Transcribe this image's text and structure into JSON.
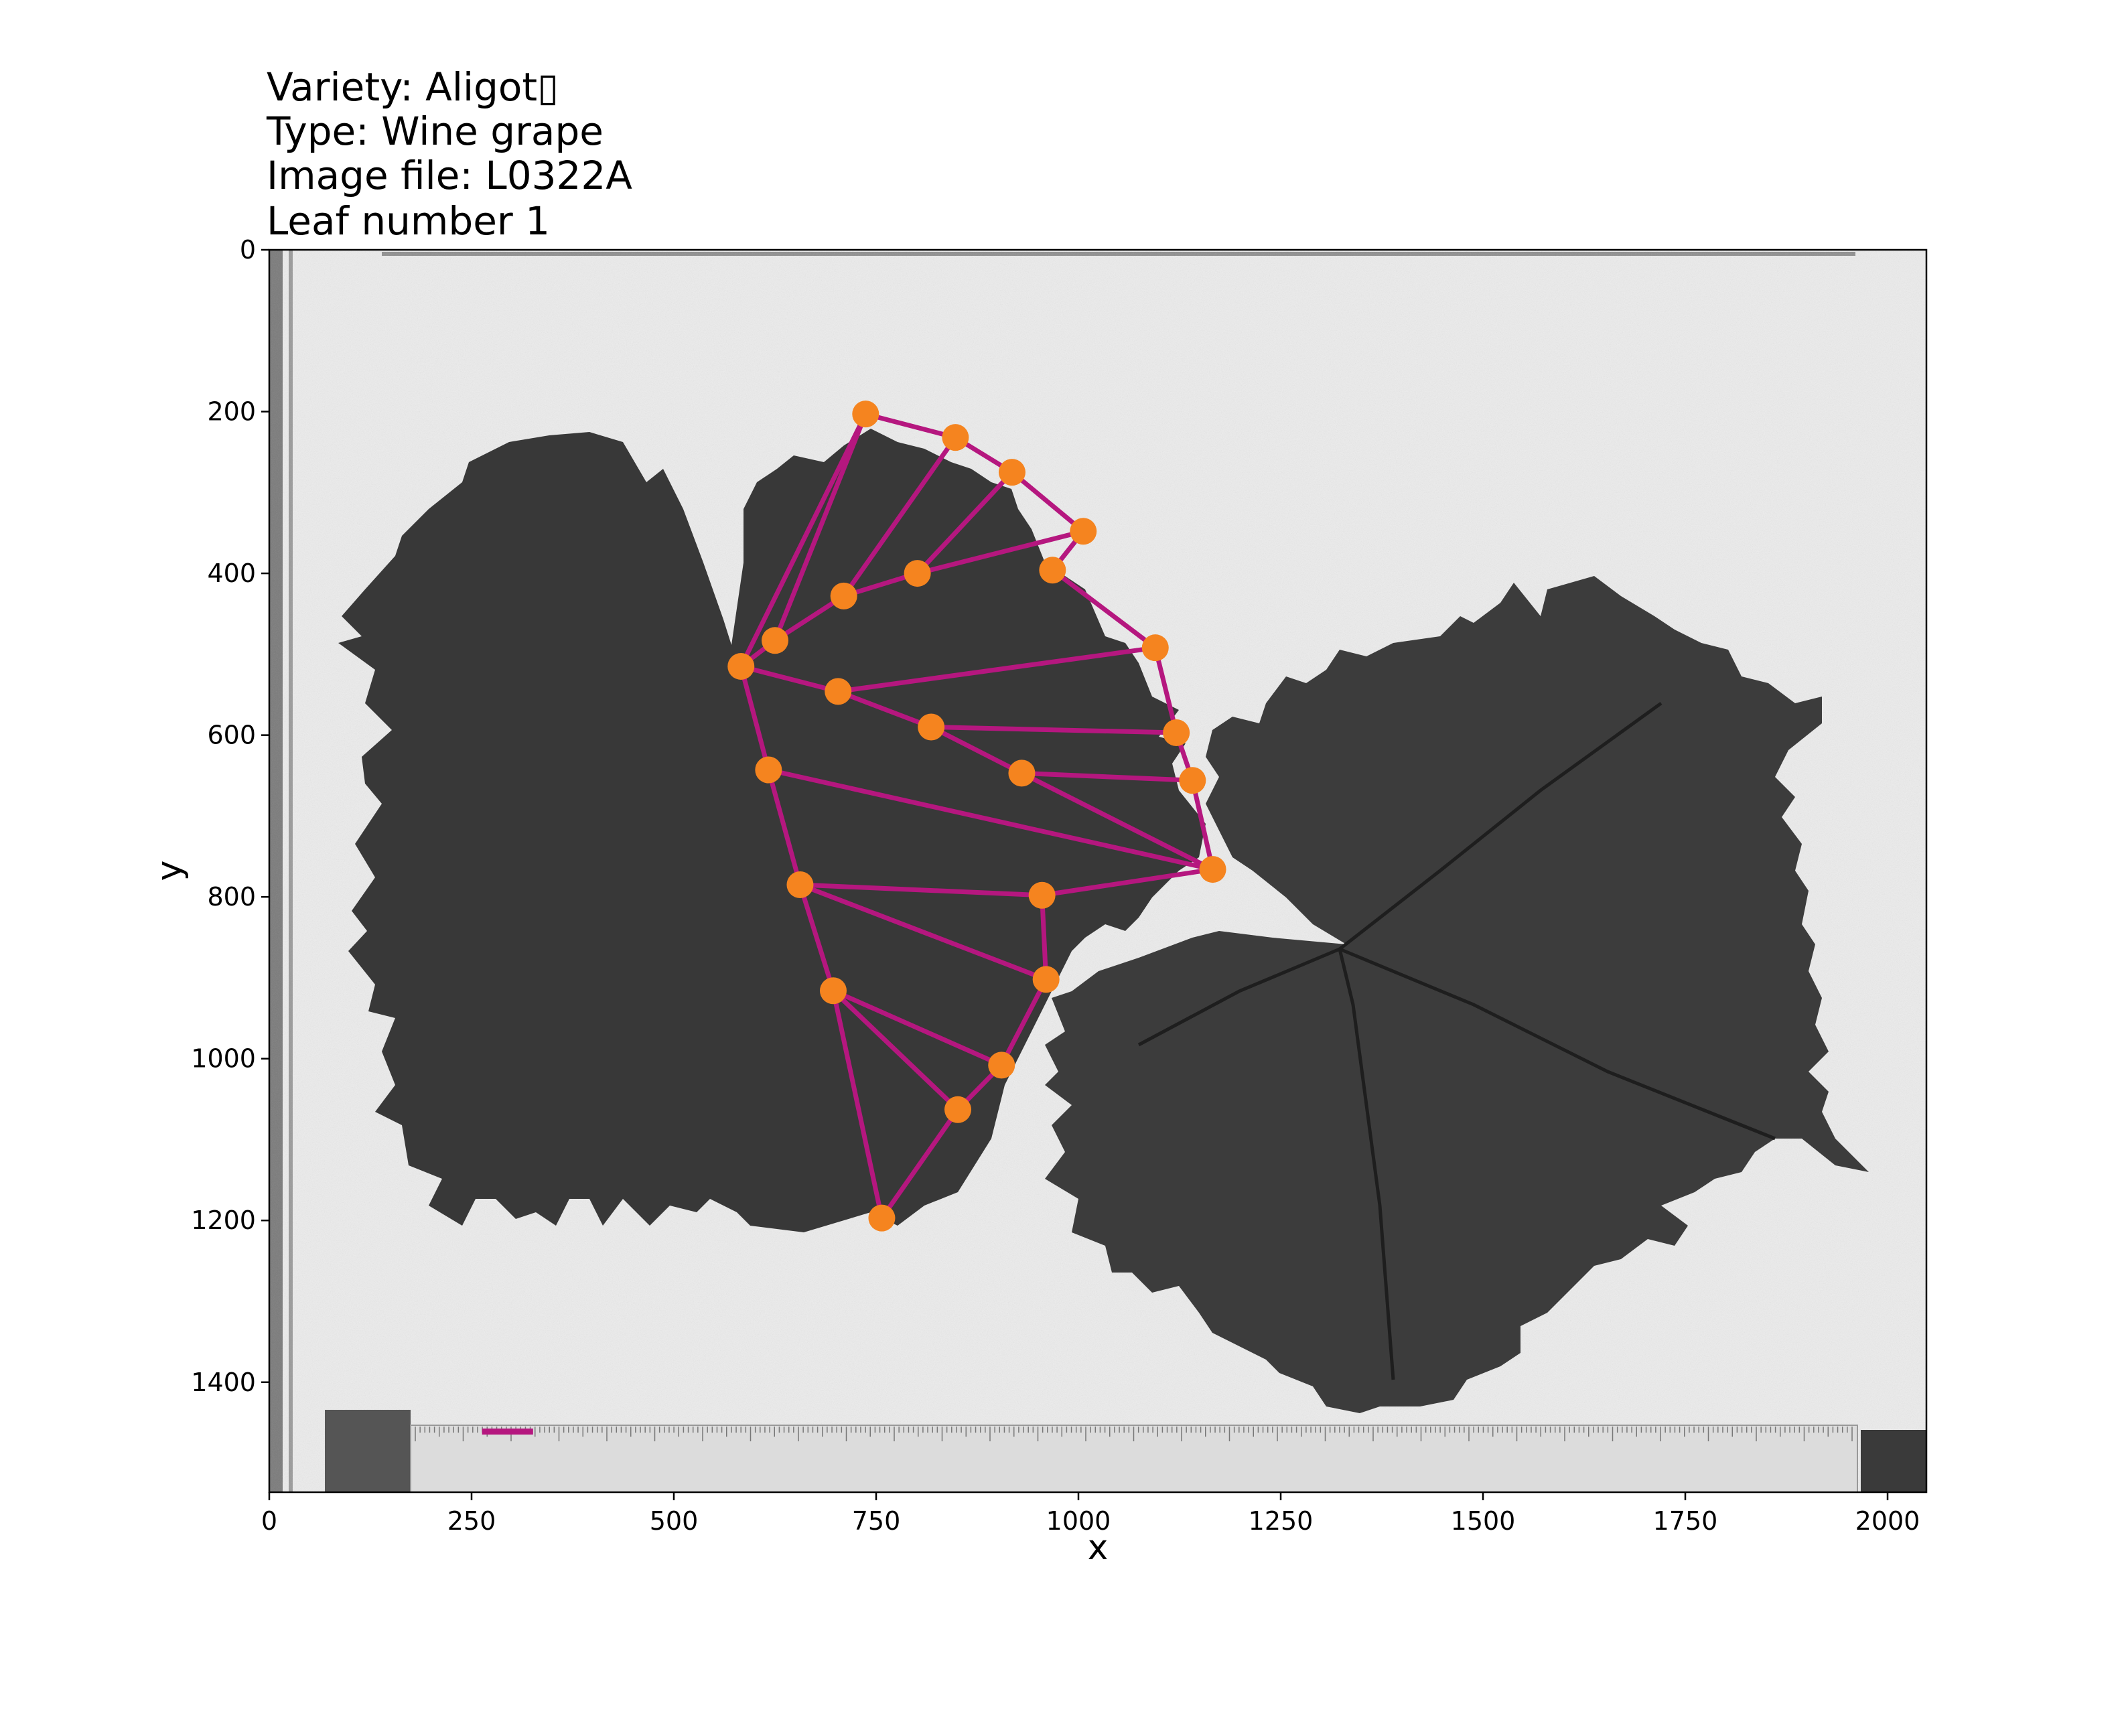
{
  "title_lines": [
    "Variety: Aligot▯",
    "Type: Wine grape",
    "Image file: L0322A",
    "Leaf number 1"
  ],
  "chart_data": {
    "type": "scatter",
    "xlabel": "x",
    "ylabel": "y",
    "xlim": [
      0,
      2048
    ],
    "ylim": [
      1536,
      0
    ],
    "xticks": [
      0,
      250,
      500,
      750,
      1000,
      1250,
      1500,
      1750,
      2000
    ],
    "yticks": [
      0,
      200,
      400,
      600,
      800,
      1000,
      1200,
      1400
    ],
    "grid": false,
    "background": "grayscale photograph of two grape leaves on a light board with a ruler at the bottom",
    "colors": {
      "landmark": "#f5841f",
      "vein": "#b5177f",
      "leaf": "#333333",
      "board": "#eeeeee"
    },
    "series": [
      {
        "name": "",
        "points": [
          {
            "x": 583,
            "y": 515
          },
          {
            "x": 625,
            "y": 483
          },
          {
            "x": 737,
            "y": 203
          },
          {
            "x": 848,
            "y": 232
          },
          {
            "x": 918,
            "y": 275
          },
          {
            "x": 1006,
            "y": 348
          },
          {
            "x": 968,
            "y": 396
          },
          {
            "x": 1095,
            "y": 492
          },
          {
            "x": 1121,
            "y": 597
          },
          {
            "x": 1141,
            "y": 656
          },
          {
            "x": 1166,
            "y": 766
          },
          {
            "x": 955,
            "y": 798
          },
          {
            "x": 960,
            "y": 902
          },
          {
            "x": 905,
            "y": 1008
          },
          {
            "x": 851,
            "y": 1063
          },
          {
            "x": 757,
            "y": 1197
          },
          {
            "x": 697,
            "y": 916
          },
          {
            "x": 656,
            "y": 785
          },
          {
            "x": 617,
            "y": 643
          },
          {
            "x": 703,
            "y": 546
          },
          {
            "x": 710,
            "y": 428
          },
          {
            "x": 801,
            "y": 400
          },
          {
            "x": 818,
            "y": 590
          },
          {
            "x": 930,
            "y": 647
          }
        ]
      }
    ],
    "scale_bar": {
      "x": [
        263,
        326
      ],
      "y": 1461
    }
  }
}
